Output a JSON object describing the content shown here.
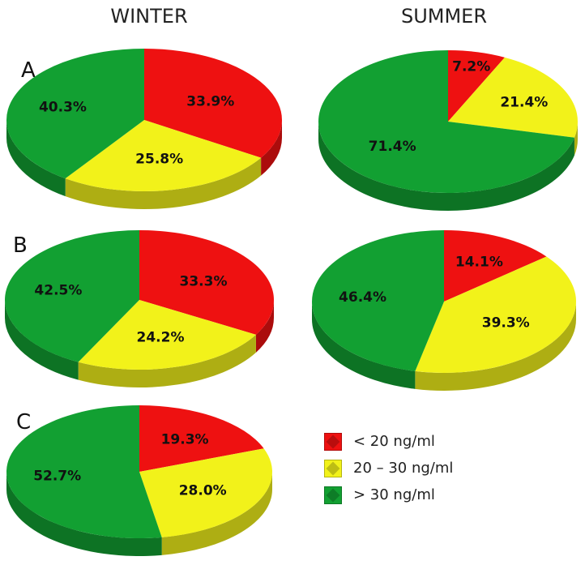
{
  "header": {
    "col1": "WINTER",
    "col2": "SUMMER"
  },
  "rows": {
    "a": "A",
    "b": "B",
    "c": "C"
  },
  "colors": {
    "red": "#ee1111",
    "yellow": "#f2f21a",
    "green": "#12a032"
  },
  "legend": [
    {
      "label": "< 20 ng/ml",
      "color": "#ee1111"
    },
    {
      "label": "20 – 30 ng/ml",
      "color": "#f2f21a"
    },
    {
      "label": "> 30 ng/ml",
      "color": "#12a032"
    }
  ],
  "chart_data": [
    {
      "type": "pie",
      "panel": "A",
      "column": "WINTER",
      "categories": [
        "< 20 ng/ml",
        "20 – 30 ng/ml",
        "> 30 ng/ml"
      ],
      "values": [
        33.9,
        25.8,
        40.3
      ],
      "labels": [
        "33.9%",
        "25.8%",
        "40.3%"
      ]
    },
    {
      "type": "pie",
      "panel": "A",
      "column": "SUMMER",
      "categories": [
        "< 20 ng/ml",
        "20 – 30 ng/ml",
        "> 30 ng/ml"
      ],
      "values": [
        7.2,
        21.4,
        71.4
      ],
      "labels": [
        "7.2%",
        "21.4%",
        "71.4%"
      ]
    },
    {
      "type": "pie",
      "panel": "B",
      "column": "WINTER",
      "categories": [
        "< 20 ng/ml",
        "20 – 30 ng/ml",
        "> 30 ng/ml"
      ],
      "values": [
        33.3,
        24.2,
        42.5
      ],
      "labels": [
        "33.3%",
        "24.2%",
        "42.5%"
      ]
    },
    {
      "type": "pie",
      "panel": "B",
      "column": "SUMMER",
      "categories": [
        "< 20 ng/ml",
        "20 – 30 ng/ml",
        "> 30 ng/ml"
      ],
      "values": [
        14.1,
        39.3,
        46.4
      ],
      "labels": [
        "14.1%",
        "39.3%",
        "46.4%"
      ]
    },
    {
      "type": "pie",
      "panel": "C",
      "column": "WINTER",
      "categories": [
        "< 20 ng/ml",
        "20 – 30 ng/ml",
        "> 30 ng/ml"
      ],
      "values": [
        19.3,
        28.0,
        52.7
      ],
      "labels": [
        "19.3%",
        "28.0%",
        "52.7%"
      ]
    }
  ]
}
